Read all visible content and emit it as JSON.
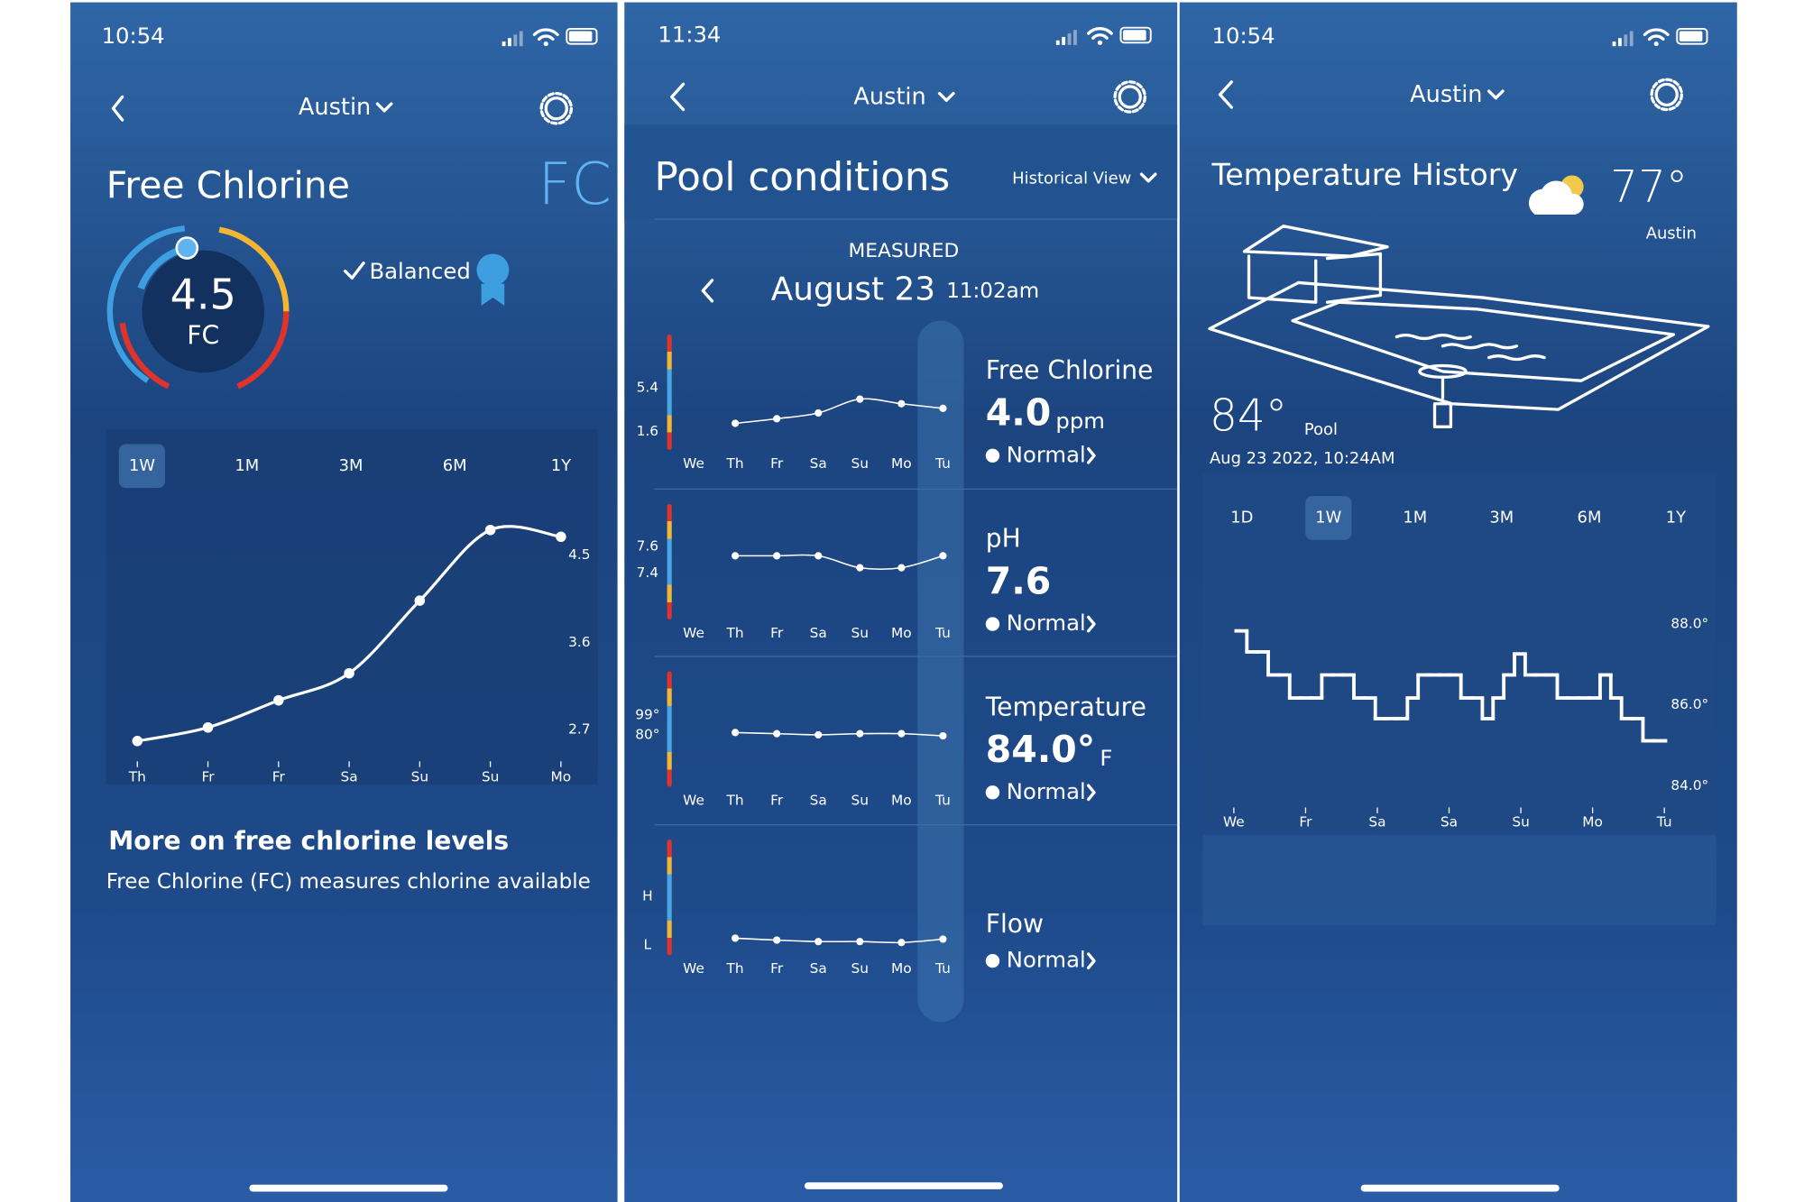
{
  "screens": [
    {
      "time": "10:54",
      "location": "Austin",
      "title": "Free Chlorine",
      "abbr": "FC",
      "reading": 4.5,
      "reading_unit": "FC",
      "status": "Balanced",
      "chart": {
        "type": "line",
        "tabs": [
          "1W",
          "1M",
          "3M",
          "6M",
          "1Y"
        ],
        "selected_tab": "1W",
        "categories": [
          "Th",
          "Fr",
          "Fr",
          "Sa",
          "Su",
          "Su",
          "Mo"
        ],
        "values": [
          2.58,
          2.72,
          3.0,
          3.28,
          4.03,
          4.76,
          4.69
        ],
        "ylim": [
          2.37,
          5.23
        ],
        "yticks": [
          2.7,
          3.6,
          4.5
        ],
        "color": "#ffffff"
      },
      "more_title": "More on free chlorine levels",
      "more_text": "Free Chlorine (FC) measures chlorine available"
    },
    {
      "time": "11:34",
      "location": "Austin",
      "title": "Pool conditions",
      "view": "Historical View",
      "measured": "MEASURED",
      "date": "August 23",
      "clock": "11:02am",
      "metrics": [
        {
          "name": "Free Chlorine",
          "value": "4.0",
          "unit": "ppm",
          "status": "Normal",
          "chart": {
            "type": "line",
            "categories": [
              "We",
              "Th",
              "Fr",
              "Sa",
              "Su",
              "Mo",
              "Tu"
            ],
            "values": [
              null,
              2.3,
              2.7,
              3.2,
              4.4,
              4.0,
              3.6
            ],
            "ylim": [
              0,
              10
            ],
            "yticks": [
              5.4,
              1.6
            ],
            "color": "#ffffff"
          }
        },
        {
          "name": "pH",
          "value": "7.6",
          "status": "Normal",
          "chart": {
            "type": "line",
            "categories": [
              "We",
              "Th",
              "Fr",
              "Sa",
              "Su",
              "Mo",
              "Tu"
            ],
            "values": [
              null,
              7.53,
              7.53,
              7.53,
              7.44,
              7.44,
              7.53
            ],
            "ylim": [
              7.05,
              7.92
            ],
            "yticks": [
              7.6,
              7.4
            ],
            "color": "#ffffff"
          }
        },
        {
          "name": "Temperature",
          "value": "84.0°",
          "unit": "F",
          "status": "Normal",
          "chart": {
            "type": "line",
            "categories": [
              "We",
              "Th",
              "Fr",
              "Sa",
              "Su",
              "Mo",
              "Tu"
            ],
            "values": [
              null,
              82.2,
              81.1,
              80,
              81.1,
              81.1,
              79
            ],
            "ylim": [
              29.7,
              141.5
            ],
            "yticks": [
              {
                "value": 99,
                "label": "99°"
              },
              {
                "value": 80,
                "label": "80°"
              }
            ],
            "color": "#ffffff"
          }
        },
        {
          "name": "Flow",
          "status": "Normal",
          "chart": {
            "type": "line",
            "categories": [
              "We",
              "Th",
              "Fr",
              "Sa",
              "Su",
              "Mo",
              "Tu"
            ],
            "values": [
              null,
              0.14,
              0.1,
              0.07,
              0.07,
              0.05,
              0.12
            ],
            "ylim": [
              -0.21,
              2.17
            ],
            "yticks": [
              {
                "value": 1,
                "label": "H"
              },
              {
                "value": 0,
                "label": "L"
              }
            ],
            "color": "#ffffff"
          }
        }
      ]
    },
    {
      "time": "10:54",
      "location": "Austin",
      "title": "Temperature History",
      "weather_temp": "77°",
      "weather_city": "Austin",
      "pool_temp": "84°",
      "pool_label": "Pool",
      "timestamp": "Aug 23 2022, 10:24AM",
      "chart": {
        "type": "step",
        "tabs": [
          "1D",
          "1W",
          "1M",
          "3M",
          "6M",
          "1Y"
        ],
        "selected_tab": "1W",
        "categories": [
          "We",
          "Fr",
          "Sa",
          "Sa",
          "Su",
          "Mo",
          "Tu"
        ],
        "values": [
          87.83,
          87.31,
          87.31,
          86.74,
          86.74,
          86.17,
          86.17,
          86.17,
          86.74,
          86.74,
          86.74,
          86.17,
          86.17,
          85.66,
          85.66,
          85.66,
          86.17,
          86.74,
          86.74,
          86.74,
          86.74,
          86.17,
          86.17,
          85.66,
          86.17,
          86.74,
          87.26,
          86.74,
          86.74,
          86.74,
          86.17,
          86.17,
          86.17,
          86.17,
          86.74,
          86.17,
          85.66,
          85.66,
          85.11,
          85.11,
          85.11
        ],
        "ylim": [
          83.46,
          89.74
        ],
        "yticks": [
          {
            "value": 88,
            "label": "88.0°"
          },
          {
            "value": 86,
            "label": "86.0°"
          },
          {
            "value": 84,
            "label": "84.0°"
          }
        ],
        "color": "#ffffff"
      }
    }
  ]
}
